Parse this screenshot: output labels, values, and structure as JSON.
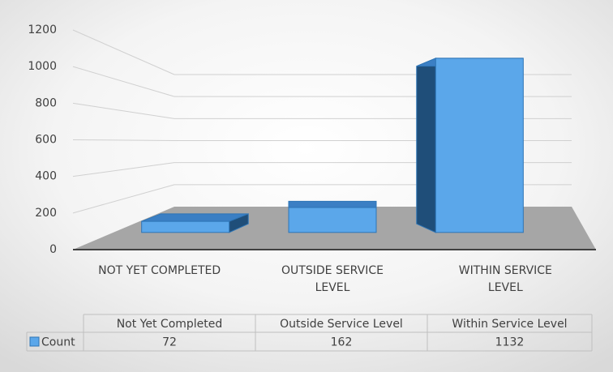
{
  "chart_data": {
    "type": "bar3d",
    "categories": [
      "NOT YET COMPLETED",
      "OUTSIDE SERVICE LEVEL",
      "WITHIN SERVICE LEVEL"
    ],
    "table_headers": [
      "Not Yet Completed",
      "Outside Service Level",
      "Within Service Level"
    ],
    "series": [
      {
        "name": "Count",
        "color": "#5ba7ea",
        "values": [
          72,
          162,
          1132
        ]
      }
    ],
    "ylim": [
      0,
      1200
    ],
    "yticks": [
      0,
      200,
      400,
      600,
      800,
      1000,
      1200
    ],
    "grid": true
  }
}
